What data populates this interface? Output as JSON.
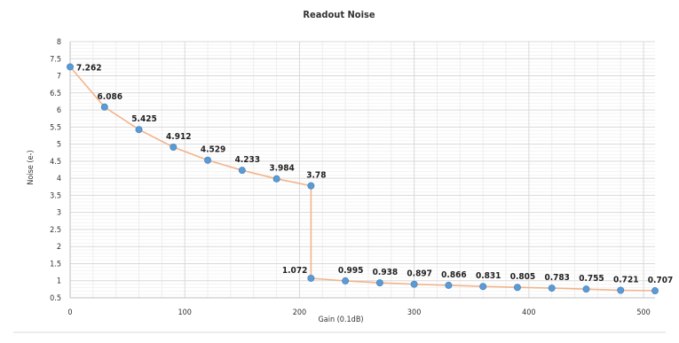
{
  "chart_data": {
    "type": "line",
    "title": "Readout Noise",
    "xlabel": "Gain (0.1dB)",
    "ylabel": "Noise (e-)",
    "xlim": [
      0,
      510
    ],
    "ylim": [
      0.5,
      8
    ],
    "x_ticks": [
      "0",
      "100",
      "200",
      "300",
      "400",
      "500"
    ],
    "y_ticks": [
      "0.5",
      "1",
      "1.5",
      "2",
      "2.5",
      "3",
      "3.5",
      "4",
      "4.5",
      "5",
      "5.5",
      "6",
      "6.5",
      "7",
      "7.5",
      "8"
    ],
    "grid": true,
    "legend": "none",
    "colors": {
      "line": "#f2b48a",
      "marker": "#5b9bd5",
      "grid_major": "#d9d9d9",
      "grid_minor": "#eeeeee",
      "axis": "#bfbfbf"
    },
    "series": [
      {
        "points": [
          {
            "x": 0,
            "y": 7.262,
            "label": "7.262"
          },
          {
            "x": 30,
            "y": 6.086,
            "label": "6.086"
          },
          {
            "x": 60,
            "y": 5.425,
            "label": "5.425"
          },
          {
            "x": 90,
            "y": 4.912,
            "label": "4.912"
          },
          {
            "x": 120,
            "y": 4.529,
            "label": "4.529"
          },
          {
            "x": 150,
            "y": 4.233,
            "label": "4.233"
          },
          {
            "x": 180,
            "y": 3.984,
            "label": "3.984"
          },
          {
            "x": 210,
            "y": 3.78,
            "label": "3.78"
          },
          {
            "x": 210,
            "y": 1.072,
            "label": "1.072"
          },
          {
            "x": 240,
            "y": 0.995,
            "label": "0.995"
          },
          {
            "x": 270,
            "y": 0.938,
            "label": "0.938"
          },
          {
            "x": 300,
            "y": 0.897,
            "label": "0.897"
          },
          {
            "x": 330,
            "y": 0.866,
            "label": "0.866"
          },
          {
            "x": 360,
            "y": 0.831,
            "label": "0.831"
          },
          {
            "x": 390,
            "y": 0.805,
            "label": "0.805"
          },
          {
            "x": 420,
            "y": 0.783,
            "label": "0.783"
          },
          {
            "x": 450,
            "y": 0.755,
            "label": "0.755"
          },
          {
            "x": 480,
            "y": 0.721,
            "label": "0.721"
          },
          {
            "x": 510,
            "y": 0.707,
            "label": "0.707"
          }
        ]
      }
    ]
  }
}
